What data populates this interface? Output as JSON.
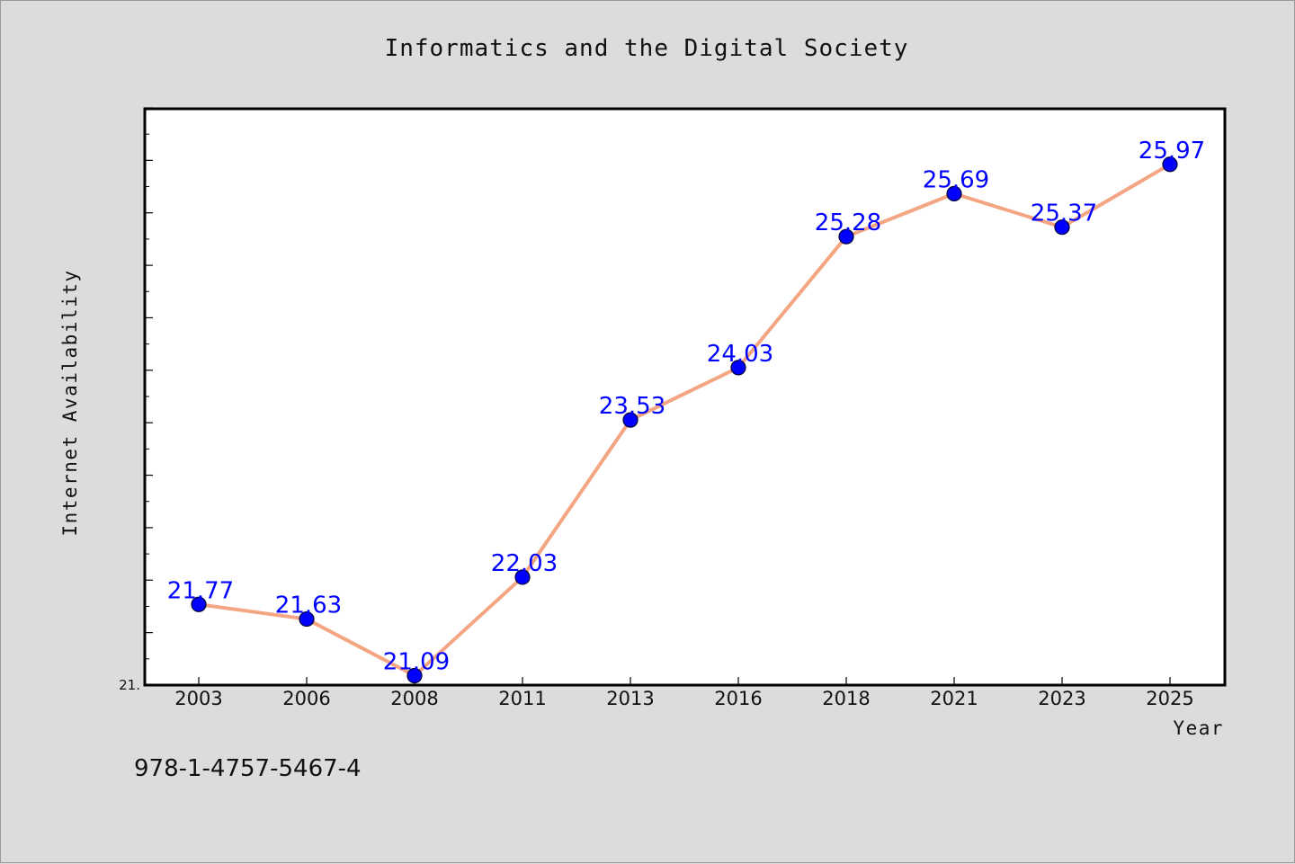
{
  "chart_data": {
    "type": "line",
    "title": "Informatics and the Digital Society",
    "xlabel": "Year",
    "ylabel": "Internet Availability",
    "categories": [
      "2003",
      "2006",
      "2008",
      "2011",
      "2013",
      "2016",
      "2018",
      "2021",
      "2023",
      "2025"
    ],
    "series": [
      {
        "values": [
          21.77,
          21.63,
          21.09,
          22.03,
          23.53,
          24.03,
          25.28,
          25.69,
          25.37,
          25.97
        ],
        "data_labels": [
          "21.77",
          "21.63",
          "21.09",
          "22.03",
          "23.53",
          "24.03",
          "25.28",
          "25.69",
          "25.37",
          "25.97"
        ],
        "line_color": "#f4a582",
        "marker_color": "#0000ff"
      }
    ],
    "y_tick_label": "21.",
    "ylim": [
      21.0,
      26.5
    ],
    "grid": false,
    "legend": "none"
  },
  "footnote": "978-1-4757-5467-4",
  "colors": {
    "background": "#dcdcdc",
    "plot_background": "#ffffff",
    "line": "#f4a582",
    "marker": "#0000ff",
    "data_label": "#0000ff"
  }
}
